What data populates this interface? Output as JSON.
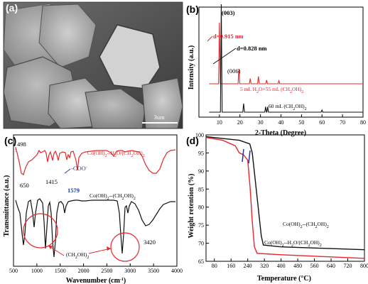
{
  "panels": {
    "a": {
      "label": "(a)",
      "scalebar_text": "3um"
    },
    "b": {
      "label": "(b)"
    },
    "c": {
      "label": "(c)"
    },
    "d": {
      "label": "(d)"
    }
  },
  "chart_data": [
    {
      "id": "b",
      "type": "line",
      "xlabel": "2-Theta (Degree)",
      "ylabel": "Intensity (a.u.)",
      "xlim": [
        0,
        80
      ],
      "xticks": [
        10,
        20,
        30,
        40,
        50,
        60,
        70,
        80
      ],
      "colors": {
        "red": "#e8262a",
        "black": "#111111"
      },
      "series": [
        {
          "name": "5 mL H2O+55 mL (CH2OH)2",
          "color": "#e8262a",
          "peaks": [
            [
              10.0,
              0.82
            ],
            [
              19.5,
              0.2
            ],
            [
              25.0,
              0.07
            ],
            [
              29.0,
              0.1
            ],
            [
              33.0,
              0.05
            ],
            [
              39.0,
              0.04
            ]
          ]
        },
        {
          "name": "60 mL (CH2OH)2",
          "color": "#111111",
          "peaks": [
            [
              10.9,
              1.0
            ],
            [
              21.8,
              0.08
            ],
            [
              32.5,
              0.05
            ],
            [
              33.5,
              0.05
            ],
            [
              60.0,
              0.02
            ]
          ]
        }
      ],
      "annotations": {
        "peak_003": "(003)",
        "peak_006": "(006)",
        "d1": "d=0.915 nm",
        "d2": "d=0.828 nm"
      }
    },
    {
      "id": "c",
      "type": "line",
      "xlabel": "Wavenumber (cm-1)",
      "ylabel": "Transmittance (a.u.)",
      "xlim": [
        500,
        4000
      ],
      "xticks": [
        500,
        1000,
        1500,
        2000,
        2500,
        3000,
        3500,
        4000
      ],
      "series": [
        {
          "name": "Co(OH)2--H2O/(CH2OH)2",
          "color": "#e8262a"
        },
        {
          "name": "Co(OH)2--(CH2OH)2",
          "color": "#111111"
        }
      ],
      "annotations": {
        "w498": "498",
        "w650": "650",
        "w1415": "1415",
        "coo": "-COO-",
        "w1579": "1579",
        "w3420": "3420",
        "ch2oh2": "(CH2OH)2"
      }
    },
    {
      "id": "d",
      "type": "line",
      "xlabel": "Temperature (°C)",
      "ylabel": "Weight retention (%)",
      "xlim": [
        40,
        800
      ],
      "ylim": [
        65,
        100
      ],
      "xticks": [
        80,
        160,
        240,
        320,
        400,
        480,
        560,
        640,
        720,
        800
      ],
      "yticks": [
        65,
        70,
        75,
        80,
        85,
        90,
        95,
        100
      ],
      "series": [
        {
          "name": "Co(OH)2--(CH2OH)2",
          "color": "#111111",
          "points": [
            [
              40,
              99.5
            ],
            [
              120,
              99.0
            ],
            [
              200,
              98.5
            ],
            [
              250,
              97.5
            ],
            [
              262,
              95
            ],
            [
              275,
              88
            ],
            [
              290,
              80
            ],
            [
              305,
              72
            ],
            [
              315,
              69.5
            ],
            [
              400,
              69.0
            ],
            [
              800,
              68.2
            ]
          ]
        },
        {
          "name": "Co(OH)2--H2O/(CH2OH)2",
          "color": "#e8262a",
          "points": [
            [
              40,
              99.3
            ],
            [
              120,
              98.5
            ],
            [
              180,
              97.0
            ],
            [
              200,
              95.0
            ],
            [
              220,
              94.5
            ],
            [
              240,
              93.0
            ],
            [
              252,
              85
            ],
            [
              262,
              76
            ],
            [
              272,
              69
            ],
            [
              285,
              67.2
            ],
            [
              400,
              66.8
            ],
            [
              800,
              65.8
            ]
          ]
        }
      ],
      "labels": {
        "black": "Co(OH)2--(CH2OH)2",
        "red": "Co(OH)2--H2O/(CH2OH)2"
      }
    }
  ]
}
